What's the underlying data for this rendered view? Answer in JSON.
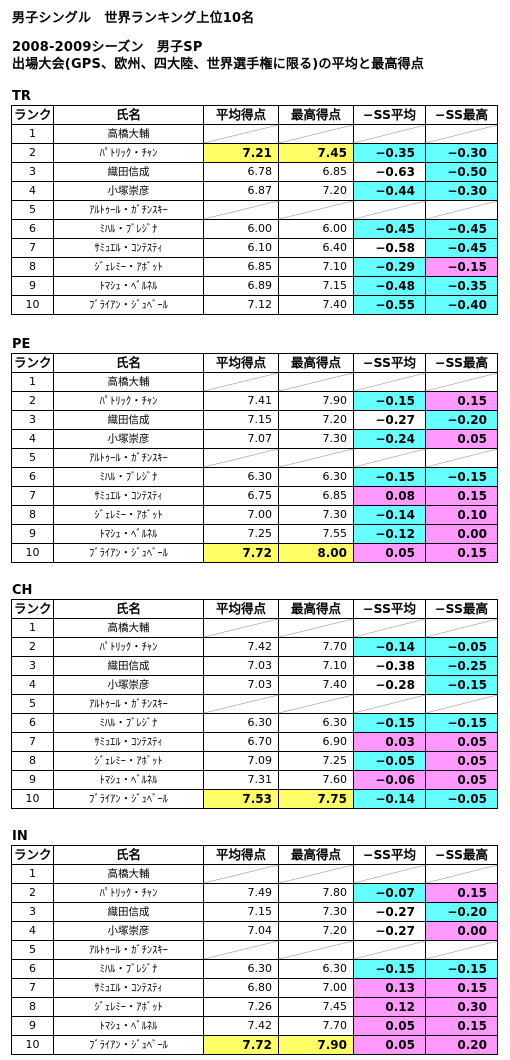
{
  "header": {
    "title": "男子シングル　世界ランキング上位10名",
    "season": "2008-2009シーズン　男子SP",
    "subtitle": "出場大会(GPS、欧州、四大陸、世界選手権に限る)の平均と最高得点"
  },
  "columns": [
    "ランク",
    "氏名",
    "平均得点",
    "最高得点",
    "−SS平均",
    "−SS最高"
  ],
  "colors": {
    "yellow": "#ffff66",
    "cyan": "#66ffff",
    "pink": "#ff99ff"
  },
  "sections": [
    {
      "label": "TR",
      "rows": [
        {
          "rank": "1",
          "name": "高橋大輔",
          "avg": null,
          "max": null,
          "ss_avg": null,
          "ss_max": null,
          "hl": [],
          "ss_avg_color": "",
          "ss_max_color": ""
        },
        {
          "rank": "2",
          "name": "ﾊﾟﾄﾘｯｸ・ﾁｬﾝ",
          "avg": "7.21",
          "max": "7.45",
          "ss_avg": "−0.35",
          "ss_max": "−0.30",
          "hl": [
            "avg",
            "max"
          ],
          "ss_avg_color": "cyan",
          "ss_max_color": "cyan"
        },
        {
          "rank": "3",
          "name": "織田信成",
          "avg": "6.78",
          "max": "6.85",
          "ss_avg": "−0.63",
          "ss_max": "−0.50",
          "hl": [],
          "ss_avg_color": "",
          "ss_max_color": "cyan"
        },
        {
          "rank": "4",
          "name": "小塚崇彦",
          "avg": "6.87",
          "max": "7.20",
          "ss_avg": "−0.44",
          "ss_max": "−0.30",
          "hl": [],
          "ss_avg_color": "cyan",
          "ss_max_color": "cyan"
        },
        {
          "rank": "5",
          "name": "ｱﾙﾄｩｰﾙ・ｶﾞﾁﾝｽｷｰ",
          "avg": null,
          "max": null,
          "ss_avg": null,
          "ss_max": null,
          "hl": [],
          "ss_avg_color": "",
          "ss_max_color": ""
        },
        {
          "rank": "6",
          "name": "ﾐﾊﾙ・ﾌﾞﾚｼﾞﾅ",
          "avg": "6.00",
          "max": "6.00",
          "ss_avg": "−0.45",
          "ss_max": "−0.45",
          "hl": [],
          "ss_avg_color": "cyan",
          "ss_max_color": "cyan"
        },
        {
          "rank": "7",
          "name": "ｻﾐｭｴﾙ・ｺﾝﾃｽﾃｨ",
          "avg": "6.10",
          "max": "6.40",
          "ss_avg": "−0.58",
          "ss_max": "−0.45",
          "hl": [],
          "ss_avg_color": "",
          "ss_max_color": "cyan"
        },
        {
          "rank": "8",
          "name": "ｼﾞｪﾚﾐｰ・ｱﾎﾞｯﾄ",
          "avg": "6.85",
          "max": "7.10",
          "ss_avg": "−0.29",
          "ss_max": "−0.15",
          "hl": [],
          "ss_avg_color": "cyan",
          "ss_max_color": "pink"
        },
        {
          "rank": "9",
          "name": "ﾄﾏｼｭ・ﾍﾞﾙﾈﾙ",
          "avg": "6.89",
          "max": "7.15",
          "ss_avg": "−0.48",
          "ss_max": "−0.35",
          "hl": [],
          "ss_avg_color": "cyan",
          "ss_max_color": "cyan"
        },
        {
          "rank": "10",
          "name": "ﾌﾞﾗｲｱﾝ・ｼﾞｭﾍﾞｰﾙ",
          "avg": "7.12",
          "max": "7.40",
          "ss_avg": "−0.55",
          "ss_max": "−0.40",
          "hl": [],
          "ss_avg_color": "cyan",
          "ss_max_color": "cyan"
        }
      ]
    },
    {
      "label": "PE",
      "rows": [
        {
          "rank": "1",
          "name": "高橋大輔",
          "avg": null,
          "max": null,
          "ss_avg": null,
          "ss_max": null,
          "hl": [],
          "ss_avg_color": "",
          "ss_max_color": ""
        },
        {
          "rank": "2",
          "name": "ﾊﾟﾄﾘｯｸ・ﾁｬﾝ",
          "avg": "7.41",
          "max": "7.90",
          "ss_avg": "−0.15",
          "ss_max": "0.15",
          "hl": [],
          "ss_avg_color": "cyan",
          "ss_max_color": "pink"
        },
        {
          "rank": "3",
          "name": "織田信成",
          "avg": "7.15",
          "max": "7.20",
          "ss_avg": "−0.27",
          "ss_max": "−0.20",
          "hl": [],
          "ss_avg_color": "",
          "ss_max_color": "cyan"
        },
        {
          "rank": "4",
          "name": "小塚崇彦",
          "avg": "7.07",
          "max": "7.30",
          "ss_avg": "−0.24",
          "ss_max": "0.05",
          "hl": [],
          "ss_avg_color": "cyan",
          "ss_max_color": "pink"
        },
        {
          "rank": "5",
          "name": "ｱﾙﾄｩｰﾙ・ｶﾞﾁﾝｽｷｰ",
          "avg": null,
          "max": null,
          "ss_avg": null,
          "ss_max": null,
          "hl": [],
          "ss_avg_color": "",
          "ss_max_color": ""
        },
        {
          "rank": "6",
          "name": "ﾐﾊﾙ・ﾌﾞﾚｼﾞﾅ",
          "avg": "6.30",
          "max": "6.30",
          "ss_avg": "−0.15",
          "ss_max": "−0.15",
          "hl": [],
          "ss_avg_color": "cyan",
          "ss_max_color": "cyan"
        },
        {
          "rank": "7",
          "name": "ｻﾐｭｴﾙ・ｺﾝﾃｽﾃｨ",
          "avg": "6.75",
          "max": "6.85",
          "ss_avg": "0.08",
          "ss_max": "0.15",
          "hl": [],
          "ss_avg_color": "pink",
          "ss_max_color": "pink"
        },
        {
          "rank": "8",
          "name": "ｼﾞｪﾚﾐｰ・ｱﾎﾞｯﾄ",
          "avg": "7.00",
          "max": "7.30",
          "ss_avg": "−0.14",
          "ss_max": "0.10",
          "hl": [],
          "ss_avg_color": "cyan",
          "ss_max_color": "pink"
        },
        {
          "rank": "9",
          "name": "ﾄﾏｼｭ・ﾍﾞﾙﾈﾙ",
          "avg": "7.25",
          "max": "7.55",
          "ss_avg": "−0.12",
          "ss_max": "0.00",
          "hl": [],
          "ss_avg_color": "cyan",
          "ss_max_color": "pink"
        },
        {
          "rank": "10",
          "name": "ﾌﾞﾗｲｱﾝ・ｼﾞｭﾍﾞｰﾙ",
          "avg": "7.72",
          "max": "8.00",
          "ss_avg": "0.05",
          "ss_max": "0.15",
          "hl": [
            "avg",
            "max"
          ],
          "ss_avg_color": "pink",
          "ss_max_color": "pink"
        }
      ]
    },
    {
      "label": "CH",
      "rows": [
        {
          "rank": "1",
          "name": "高橋大輔",
          "avg": null,
          "max": null,
          "ss_avg": null,
          "ss_max": null,
          "hl": [],
          "ss_avg_color": "",
          "ss_max_color": ""
        },
        {
          "rank": "2",
          "name": "ﾊﾟﾄﾘｯｸ・ﾁｬﾝ",
          "avg": "7.42",
          "max": "7.70",
          "ss_avg": "−0.14",
          "ss_max": "−0.05",
          "hl": [],
          "ss_avg_color": "cyan",
          "ss_max_color": "cyan"
        },
        {
          "rank": "3",
          "name": "織田信成",
          "avg": "7.03",
          "max": "7.10",
          "ss_avg": "−0.38",
          "ss_max": "−0.25",
          "hl": [],
          "ss_avg_color": "",
          "ss_max_color": "cyan"
        },
        {
          "rank": "4",
          "name": "小塚崇彦",
          "avg": "7.03",
          "max": "7.40",
          "ss_avg": "−0.28",
          "ss_max": "−0.15",
          "hl": [],
          "ss_avg_color": "",
          "ss_max_color": "cyan"
        },
        {
          "rank": "5",
          "name": "ｱﾙﾄｩｰﾙ・ｶﾞﾁﾝｽｷｰ",
          "avg": null,
          "max": null,
          "ss_avg": null,
          "ss_max": null,
          "hl": [],
          "ss_avg_color": "",
          "ss_max_color": ""
        },
        {
          "rank": "6",
          "name": "ﾐﾊﾙ・ﾌﾞﾚｼﾞﾅ",
          "avg": "6.30",
          "max": "6.30",
          "ss_avg": "−0.15",
          "ss_max": "−0.15",
          "hl": [],
          "ss_avg_color": "cyan",
          "ss_max_color": "cyan"
        },
        {
          "rank": "7",
          "name": "ｻﾐｭｴﾙ・ｺﾝﾃｽﾃｨ",
          "avg": "6.70",
          "max": "6.90",
          "ss_avg": "0.03",
          "ss_max": "0.05",
          "hl": [],
          "ss_avg_color": "pink",
          "ss_max_color": "pink"
        },
        {
          "rank": "8",
          "name": "ｼﾞｪﾚﾐｰ・ｱﾎﾞｯﾄ",
          "avg": "7.09",
          "max": "7.25",
          "ss_avg": "−0.05",
          "ss_max": "0.05",
          "hl": [],
          "ss_avg_color": "cyan",
          "ss_max_color": "pink"
        },
        {
          "rank": "9",
          "name": "ﾄﾏｼｭ・ﾍﾞﾙﾈﾙ",
          "avg": "7.31",
          "max": "7.60",
          "ss_avg": "−0.06",
          "ss_max": "0.05",
          "hl": [],
          "ss_avg_color": "pink",
          "ss_max_color": "pink"
        },
        {
          "rank": "10",
          "name": "ﾌﾞﾗｲｱﾝ・ｼﾞｭﾍﾞｰﾙ",
          "avg": "7.53",
          "max": "7.75",
          "ss_avg": "−0.14",
          "ss_max": "−0.05",
          "hl": [
            "avg",
            "max"
          ],
          "ss_avg_color": "cyan",
          "ss_max_color": "cyan"
        }
      ]
    },
    {
      "label": "IN",
      "rows": [
        {
          "rank": "1",
          "name": "高橋大輔",
          "avg": null,
          "max": null,
          "ss_avg": null,
          "ss_max": null,
          "hl": [],
          "ss_avg_color": "",
          "ss_max_color": ""
        },
        {
          "rank": "2",
          "name": "ﾊﾟﾄﾘｯｸ・ﾁｬﾝ",
          "avg": "7.49",
          "max": "7.80",
          "ss_avg": "−0.07",
          "ss_max": "0.15",
          "hl": [],
          "ss_avg_color": "cyan",
          "ss_max_color": "pink"
        },
        {
          "rank": "3",
          "name": "織田信成",
          "avg": "7.15",
          "max": "7.30",
          "ss_avg": "−0.27",
          "ss_max": "−0.20",
          "hl": [],
          "ss_avg_color": "",
          "ss_max_color": "cyan"
        },
        {
          "rank": "4",
          "name": "小塚崇彦",
          "avg": "7.04",
          "max": "7.20",
          "ss_avg": "−0.27",
          "ss_max": "0.00",
          "hl": [],
          "ss_avg_color": "",
          "ss_max_color": "pink"
        },
        {
          "rank": "5",
          "name": "ｱﾙﾄｩｰﾙ・ｶﾞﾁﾝｽｷｰ",
          "avg": null,
          "max": null,
          "ss_avg": null,
          "ss_max": null,
          "hl": [],
          "ss_avg_color": "",
          "ss_max_color": ""
        },
        {
          "rank": "6",
          "name": "ﾐﾊﾙ・ﾌﾞﾚｼﾞﾅ",
          "avg": "6.30",
          "max": "6.30",
          "ss_avg": "−0.15",
          "ss_max": "−0.15",
          "hl": [],
          "ss_avg_color": "cyan",
          "ss_max_color": "cyan"
        },
        {
          "rank": "7",
          "name": "ｻﾐｭｴﾙ・ｺﾝﾃｽﾃｨ",
          "avg": "6.80",
          "max": "7.00",
          "ss_avg": "0.13",
          "ss_max": "0.15",
          "hl": [],
          "ss_avg_color": "pink",
          "ss_max_color": "pink"
        },
        {
          "rank": "8",
          "name": "ｼﾞｪﾚﾐｰ・ｱﾎﾞｯﾄ",
          "avg": "7.26",
          "max": "7.45",
          "ss_avg": "0.12",
          "ss_max": "0.30",
          "hl": [],
          "ss_avg_color": "pink",
          "ss_max_color": "pink"
        },
        {
          "rank": "9",
          "name": "ﾄﾏｼｭ・ﾍﾞﾙﾈﾙ",
          "avg": "7.42",
          "max": "7.70",
          "ss_avg": "0.05",
          "ss_max": "0.15",
          "hl": [],
          "ss_avg_color": "pink",
          "ss_max_color": "pink"
        },
        {
          "rank": "10",
          "name": "ﾌﾞﾗｲｱﾝ・ｼﾞｭﾍﾞｰﾙ",
          "avg": "7.72",
          "max": "7.90",
          "ss_avg": "0.05",
          "ss_max": "0.20",
          "hl": [
            "avg",
            "max"
          ],
          "ss_avg_color": "pink",
          "ss_max_color": "pink"
        }
      ]
    }
  ]
}
